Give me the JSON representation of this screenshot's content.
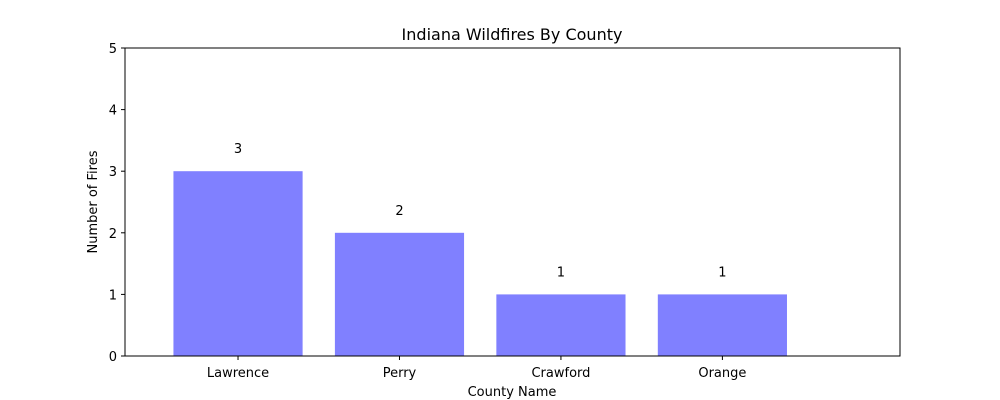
{
  "chart_data": {
    "type": "bar",
    "title": "Indiana Wildfires By County",
    "xlabel": "County Name",
    "ylabel": "Number of Fires",
    "categories": [
      "Lawrence",
      "Perry",
      "Crawford",
      "Orange"
    ],
    "values": [
      3,
      2,
      1,
      1
    ],
    "data_labels": [
      "3",
      "2",
      "1",
      "1"
    ],
    "ylim": [
      0,
      5
    ],
    "yticks": [
      0,
      1,
      2,
      3,
      4,
      5
    ],
    "ytick_labels": [
      "0",
      "1",
      "2",
      "3",
      "4",
      "5"
    ],
    "xlim": [
      -0.7,
      4.1
    ],
    "grid": false,
    "bar_color": "#8080ff"
  }
}
